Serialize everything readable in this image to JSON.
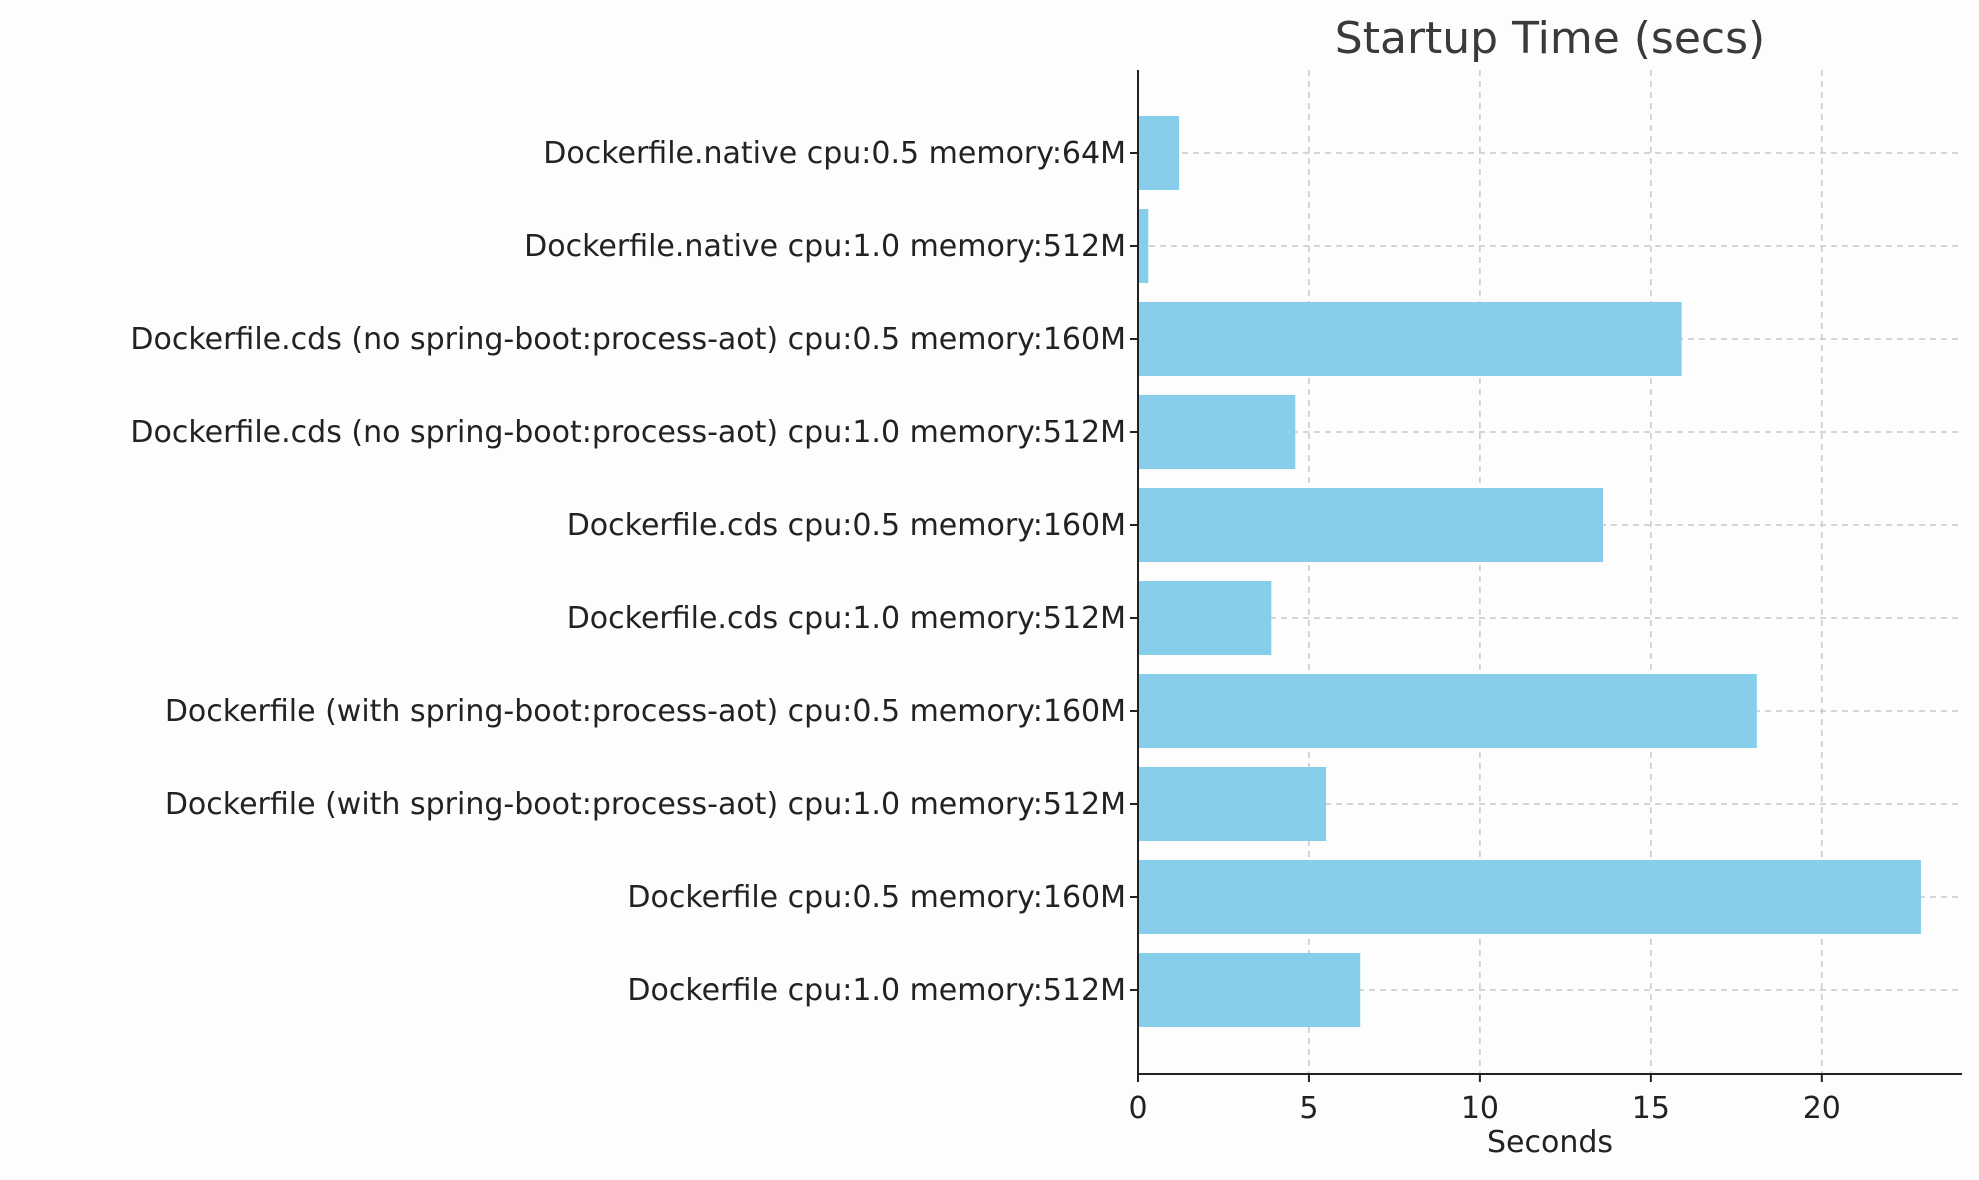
{
  "chart_data": {
    "type": "bar",
    "orientation": "horizontal",
    "title": "Startup Time (secs)",
    "xlabel": "Seconds",
    "ylabel": "",
    "categories": [
      "Dockerfile.native cpu:0.5 memory:64M",
      "Dockerfile.native cpu:1.0 memory:512M",
      "Dockerfile.cds (no spring-boot:process-aot) cpu:0.5 memory:160M",
      "Dockerfile.cds (no spring-boot:process-aot) cpu:1.0 memory:512M",
      "Dockerfile.cds cpu:0.5 memory:160M",
      "Dockerfile.cds cpu:1.0 memory:512M",
      "Dockerfile (with spring-boot:process-aot) cpu:0.5 memory:160M",
      "Dockerfile (with spring-boot:process-aot) cpu:1.0 memory:512M",
      "Dockerfile cpu:0.5 memory:160M",
      "Dockerfile cpu:1.0 memory:512M"
    ],
    "values": [
      1.2,
      0.3,
      15.9,
      4.6,
      13.6,
      3.9,
      18.1,
      5.5,
      22.9,
      6.5
    ],
    "xlim": [
      0,
      24.1
    ],
    "xticks": [
      0,
      5,
      10,
      15,
      20
    ],
    "grid": true,
    "bar_color": "#87ceeb"
  }
}
